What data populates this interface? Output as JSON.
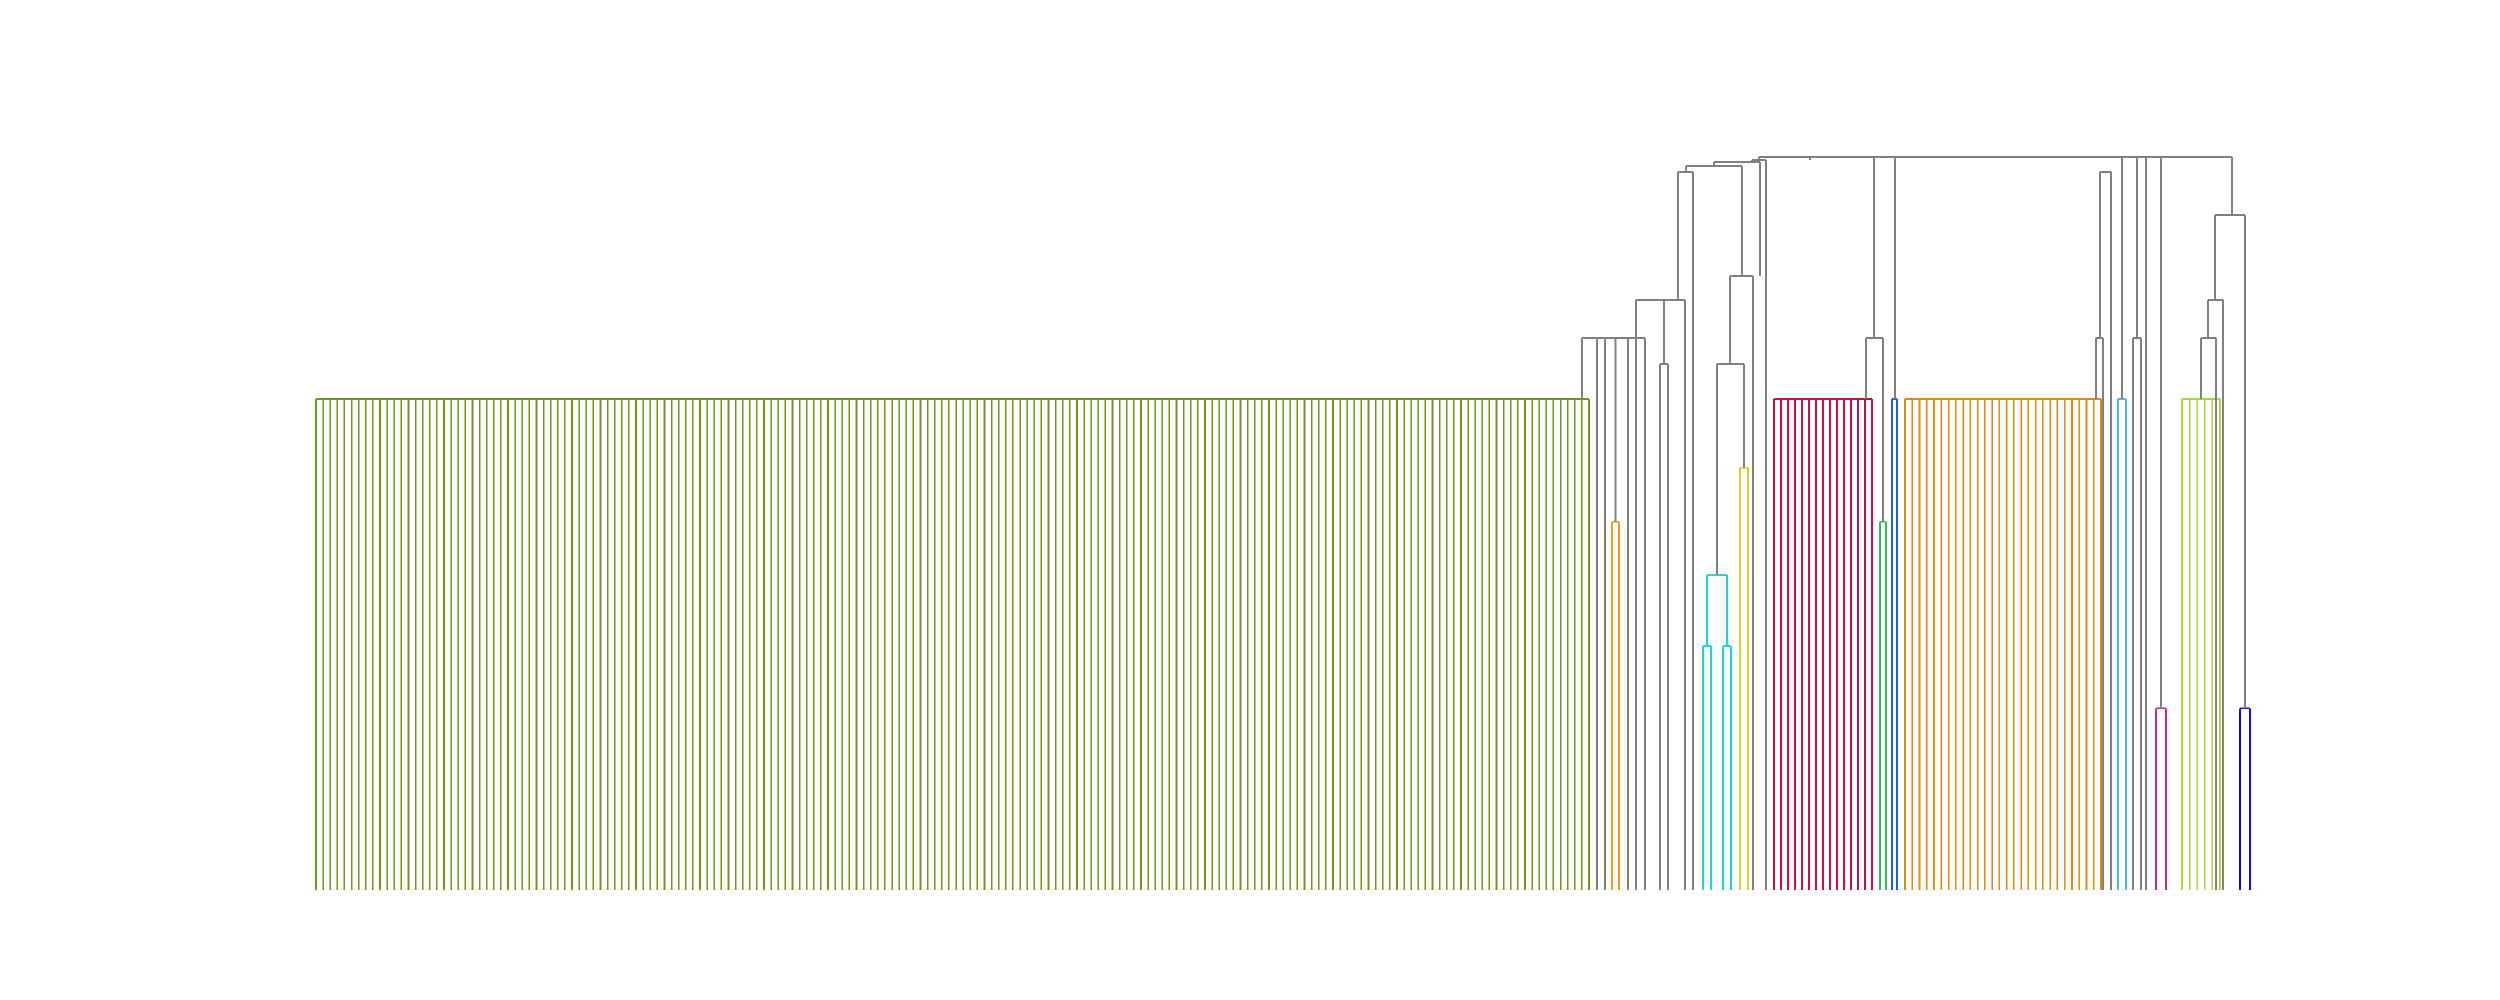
{
  "chart_data": {
    "type": "dendrogram",
    "title": "",
    "xlabel": "",
    "ylabel": "",
    "axes_visible": false,
    "grid": false,
    "legend": "none",
    "colors": {
      "link_default": "#808080",
      "olive_green": "#6b9a1e",
      "orange": "#f39a1c",
      "cyan": "#1ed6d6",
      "yellow": "#d8d020",
      "crimson": "#c8103c",
      "green": "#30c050",
      "blue": "#2060e0",
      "dark_orange": "#e08a10",
      "light_blue": "#50b8e8",
      "magenta": "#d02880",
      "lime": "#a8d838",
      "navy": "#1010c8"
    },
    "clusters": [
      {
        "name": "olive-green-cluster",
        "color_key": "olive_green",
        "leaf_count": 180,
        "merge_height": 1.0
      },
      {
        "name": "orange-pair",
        "color_key": "orange",
        "leaf_count": 2,
        "merge_height": 0.75
      },
      {
        "name": "cyan-cluster",
        "color_key": "cyan",
        "leaf_count": 4,
        "merge_height": 0.64
      },
      {
        "name": "yellow-pair",
        "color_key": "yellow",
        "leaf_count": 2,
        "merge_height": 0.86
      },
      {
        "name": "crimson-cluster",
        "color_key": "crimson",
        "leaf_count": 15,
        "merge_height": 1.0
      },
      {
        "name": "green-pair",
        "color_key": "green",
        "leaf_count": 2,
        "merge_height": 0.75
      },
      {
        "name": "blue-pair",
        "color_key": "blue",
        "leaf_count": 2,
        "merge_height": 1.0
      },
      {
        "name": "dark-orange-cluster",
        "color_key": "dark_orange",
        "leaf_count": 28,
        "merge_height": 1.0
      },
      {
        "name": "light-blue-pair",
        "color_key": "light_blue",
        "leaf_count": 2,
        "merge_height": 1.0
      },
      {
        "name": "magenta-pair",
        "color_key": "magenta",
        "leaf_count": 2,
        "merge_height": 0.37
      },
      {
        "name": "lime-cluster",
        "color_key": "lime",
        "leaf_count": 6,
        "merge_height": 1.0
      },
      {
        "name": "navy-pair",
        "color_key": "navy",
        "leaf_count": 2,
        "merge_height": 0.37
      }
    ]
  }
}
